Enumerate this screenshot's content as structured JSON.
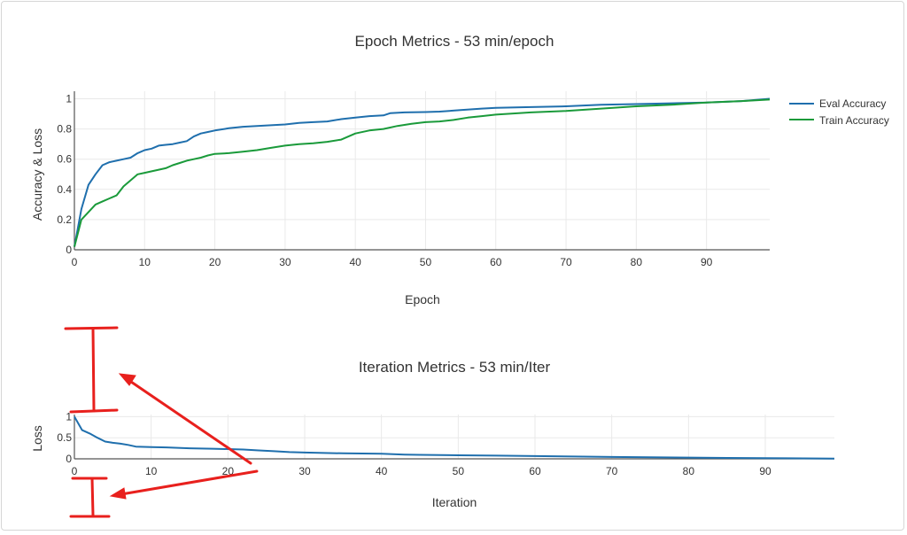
{
  "chart_data": [
    {
      "type": "line",
      "title": "Epoch Metrics - 53 min/epoch",
      "xlabel": "Epoch",
      "ylabel": "Accuracy & Loss",
      "xlim": [
        0,
        99
      ],
      "ylim": [
        0,
        1.05
      ],
      "xticks": [
        0,
        10,
        20,
        30,
        40,
        50,
        60,
        70,
        80,
        90
      ],
      "yticks": [
        0,
        0.2,
        0.4,
        0.6,
        0.8,
        1
      ],
      "ytick_labels": [
        "0",
        "0.2",
        "0.4",
        "0.6",
        "0.8",
        "1"
      ],
      "grid": true,
      "legend_position": "right",
      "series": [
        {
          "name": "Eval Accuracy",
          "color": "#1f6fad",
          "points": [
            [
              0,
              0.02
            ],
            [
              1,
              0.27
            ],
            [
              2,
              0.43
            ],
            [
              3,
              0.5
            ],
            [
              4,
              0.56
            ],
            [
              5,
              0.58
            ],
            [
              6,
              0.59
            ],
            [
              7,
              0.6
            ],
            [
              8,
              0.61
            ],
            [
              9,
              0.64
            ],
            [
              10,
              0.66
            ],
            [
              11,
              0.67
            ],
            [
              12,
              0.69
            ],
            [
              13,
              0.695
            ],
            [
              14,
              0.7
            ],
            [
              15,
              0.71
            ],
            [
              16,
              0.72
            ],
            [
              17,
              0.75
            ],
            [
              18,
              0.77
            ],
            [
              19,
              0.78
            ],
            [
              20,
              0.79
            ],
            [
              22,
              0.805
            ],
            [
              24,
              0.815
            ],
            [
              26,
              0.82
            ],
            [
              28,
              0.825
            ],
            [
              30,
              0.83
            ],
            [
              32,
              0.84
            ],
            [
              34,
              0.845
            ],
            [
              36,
              0.85
            ],
            [
              38,
              0.865
            ],
            [
              40,
              0.875
            ],
            [
              42,
              0.885
            ],
            [
              44,
              0.89
            ],
            [
              45,
              0.905
            ],
            [
              47,
              0.91
            ],
            [
              50,
              0.912
            ],
            [
              52,
              0.915
            ],
            [
              55,
              0.925
            ],
            [
              58,
              0.935
            ],
            [
              60,
              0.94
            ],
            [
              65,
              0.945
            ],
            [
              70,
              0.95
            ],
            [
              75,
              0.96
            ],
            [
              80,
              0.965
            ],
            [
              85,
              0.97
            ],
            [
              90,
              0.975
            ],
            [
              95,
              0.985
            ],
            [
              99,
              1.0
            ]
          ]
        },
        {
          "name": "Train Accuracy",
          "color": "#1a9a3a",
          "points": [
            [
              0,
              0.02
            ],
            [
              1,
              0.2
            ],
            [
              2,
              0.25
            ],
            [
              3,
              0.3
            ],
            [
              4,
              0.32
            ],
            [
              5,
              0.34
            ],
            [
              6,
              0.36
            ],
            [
              7,
              0.42
            ],
            [
              8,
              0.46
            ],
            [
              9,
              0.5
            ],
            [
              10,
              0.51
            ],
            [
              11,
              0.52
            ],
            [
              12,
              0.53
            ],
            [
              13,
              0.54
            ],
            [
              14,
              0.56
            ],
            [
              15,
              0.575
            ],
            [
              16,
              0.59
            ],
            [
              17,
              0.6
            ],
            [
              18,
              0.61
            ],
            [
              19,
              0.625
            ],
            [
              20,
              0.635
            ],
            [
              22,
              0.64
            ],
            [
              24,
              0.65
            ],
            [
              26,
              0.66
            ],
            [
              28,
              0.675
            ],
            [
              30,
              0.69
            ],
            [
              32,
              0.7
            ],
            [
              34,
              0.705
            ],
            [
              36,
              0.715
            ],
            [
              38,
              0.73
            ],
            [
              40,
              0.77
            ],
            [
              42,
              0.79
            ],
            [
              44,
              0.8
            ],
            [
              46,
              0.82
            ],
            [
              48,
              0.835
            ],
            [
              50,
              0.845
            ],
            [
              52,
              0.85
            ],
            [
              54,
              0.86
            ],
            [
              56,
              0.875
            ],
            [
              58,
              0.885
            ],
            [
              60,
              0.895
            ],
            [
              65,
              0.91
            ],
            [
              70,
              0.92
            ],
            [
              75,
              0.935
            ],
            [
              80,
              0.95
            ],
            [
              85,
              0.96
            ],
            [
              90,
              0.975
            ],
            [
              95,
              0.985
            ],
            [
              99,
              0.995
            ]
          ]
        }
      ]
    },
    {
      "type": "line",
      "title": "Iteration Metrics - 53 min/Iter",
      "xlabel": "Iteration",
      "ylabel": "Loss",
      "xlim": [
        0,
        99
      ],
      "ylim": [
        0,
        1.05
      ],
      "xticks": [
        0,
        10,
        20,
        30,
        40,
        50,
        60,
        70,
        80,
        90
      ],
      "yticks": [
        0,
        0.5,
        1
      ],
      "ytick_labels": [
        "0",
        "0.5",
        "1"
      ],
      "grid": true,
      "series": [
        {
          "color": "#1f6fad",
          "points": [
            [
              0,
              1.0
            ],
            [
              1,
              0.68
            ],
            [
              2,
              0.6
            ],
            [
              3,
              0.5
            ],
            [
              4,
              0.41
            ],
            [
              5,
              0.38
            ],
            [
              6,
              0.36
            ],
            [
              7,
              0.33
            ],
            [
              8,
              0.29
            ],
            [
              10,
              0.28
            ],
            [
              12,
              0.27
            ],
            [
              15,
              0.25
            ],
            [
              18,
              0.24
            ],
            [
              20,
              0.23
            ],
            [
              22,
              0.22
            ],
            [
              24,
              0.2
            ],
            [
              26,
              0.18
            ],
            [
              28,
              0.16
            ],
            [
              30,
              0.15
            ],
            [
              35,
              0.13
            ],
            [
              40,
              0.12
            ],
            [
              43,
              0.1
            ],
            [
              45,
              0.095
            ],
            [
              50,
              0.085
            ],
            [
              55,
              0.075
            ],
            [
              60,
              0.065
            ],
            [
              65,
              0.055
            ],
            [
              70,
              0.045
            ],
            [
              75,
              0.038
            ],
            [
              80,
              0.03
            ],
            [
              85,
              0.022
            ],
            [
              90,
              0.015
            ],
            [
              95,
              0.01
            ],
            [
              99,
              0.005
            ]
          ]
        }
      ]
    }
  ],
  "annotation_color": "#e8201d"
}
